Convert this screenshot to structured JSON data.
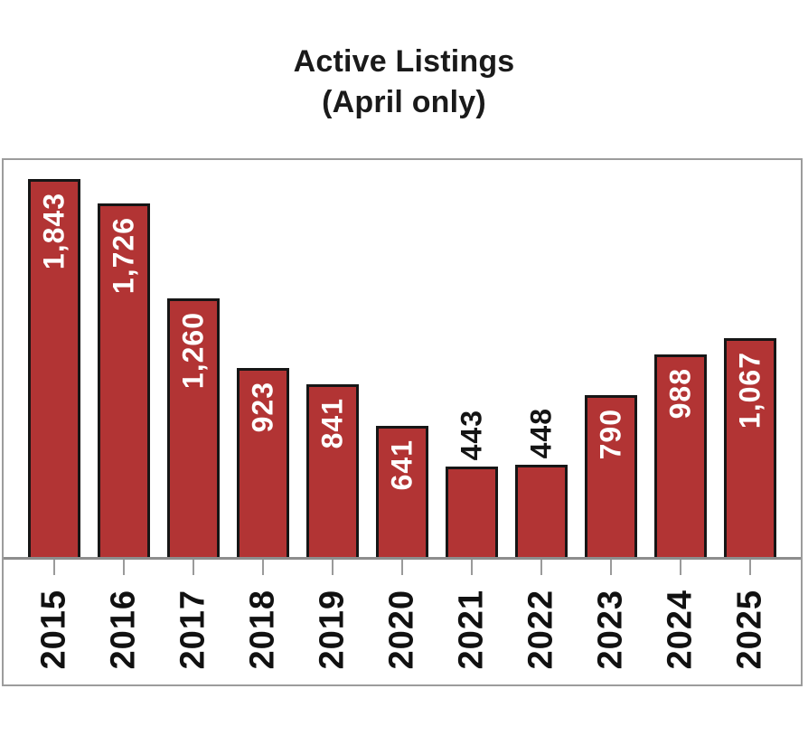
{
  "title": {
    "line1": "Active Listings",
    "line2": "(April only)"
  },
  "chart_data": {
    "type": "bar",
    "title": "Active Listings (April only)",
    "categories": [
      "2015",
      "2016",
      "2017",
      "2018",
      "2019",
      "2020",
      "2021",
      "2022",
      "2023",
      "2024",
      "2025"
    ],
    "values": [
      1843,
      1726,
      1260,
      923,
      841,
      641,
      443,
      448,
      790,
      988,
      1067
    ],
    "value_labels": [
      "1,843",
      "1,726",
      "1,260",
      "923",
      "841",
      "641",
      "443",
      "448",
      "790",
      "988",
      "1,067"
    ],
    "outside_label_categories": [
      "2021",
      "2022"
    ],
    "xlabel": "",
    "ylabel": "",
    "ylim": [
      0,
      1940
    ],
    "grid": "off",
    "legend": "none",
    "colors": {
      "bar_fill": "#b23434",
      "bar_border": "#161616",
      "label_inside": "#ffffff",
      "label_outside": "#141414",
      "frame_border": "#9c9c9c",
      "axis_line": "#8d8d8d",
      "tick": "#9a9a9a",
      "title_text": "#1a1a1a"
    }
  }
}
